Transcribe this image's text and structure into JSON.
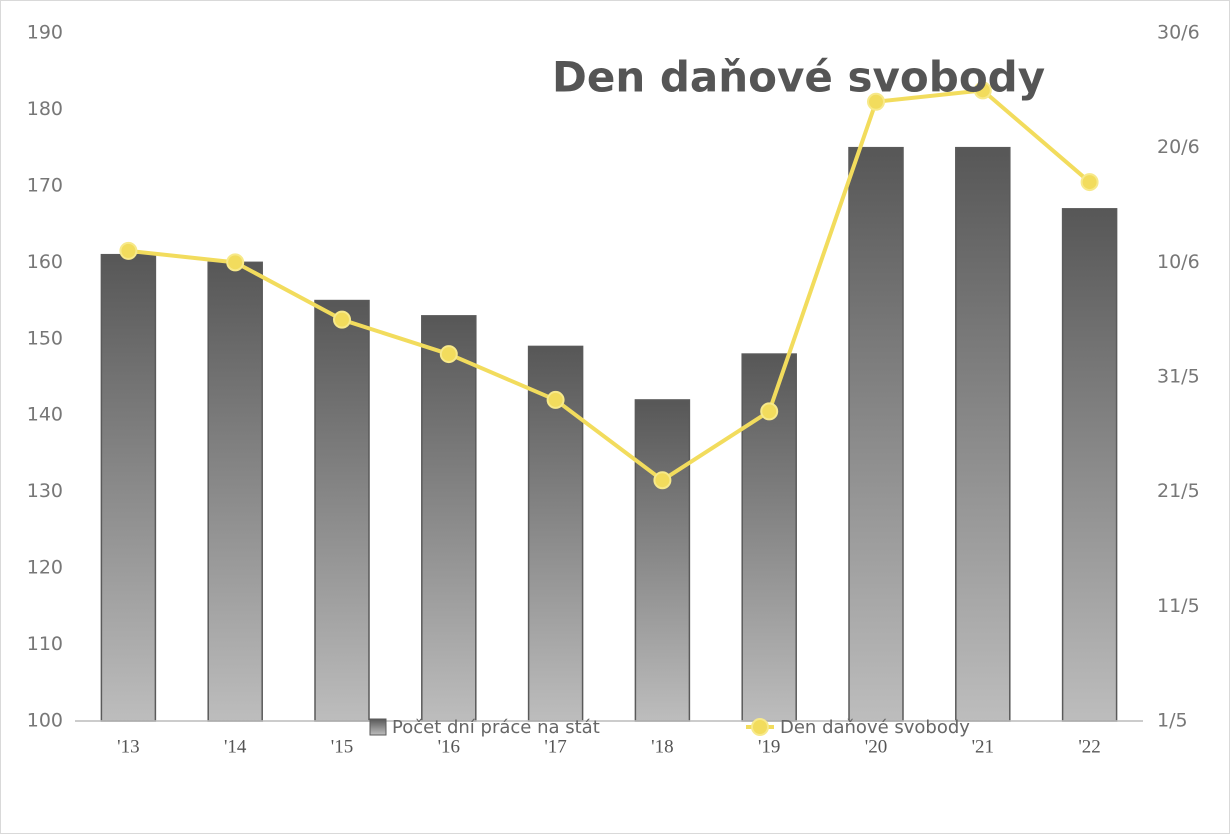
{
  "chart_data": {
    "type": "bar",
    "title": "Den daňové svobody",
    "categories": [
      "'13",
      "'14",
      "'15",
      "'16",
      "'17",
      "'18",
      "'19",
      "'20",
      "'21",
      "'22"
    ],
    "series": [
      {
        "name": "Počet dní práce na stát",
        "type": "bar",
        "color": "#5a5a5a",
        "values": [
          161,
          160,
          155,
          153,
          149,
          142,
          148,
          175,
          175,
          167
        ]
      },
      {
        "name": "Den daňové svobody",
        "type": "line",
        "axis": "y2",
        "color": "#f2dc5d",
        "values": [
          162,
          161,
          156,
          153,
          149,
          142,
          148,
          175,
          176,
          168
        ]
      }
    ],
    "ylim": [
      100,
      190
    ],
    "yticks": [
      100,
      110,
      120,
      130,
      140,
      150,
      160,
      170,
      180,
      190
    ],
    "y2lim": [
      121,
      181
    ],
    "y2ticks": [
      {
        "value": 121,
        "label": "1/5"
      },
      {
        "value": 131,
        "label": "11/5"
      },
      {
        "value": 141,
        "label": "21/5"
      },
      {
        "value": 151,
        "label": "31/5"
      },
      {
        "value": 161,
        "label": "10/6"
      },
      {
        "value": 171,
        "label": "20/6"
      },
      {
        "value": 181,
        "label": "30/6"
      }
    ],
    "grid": false
  }
}
